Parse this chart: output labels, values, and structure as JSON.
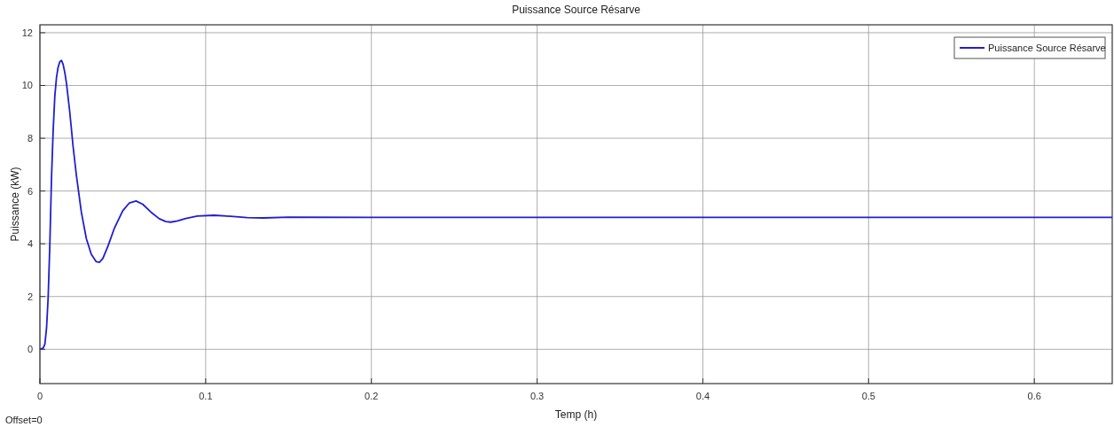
{
  "chart_data": {
    "type": "line",
    "title": "Puissance Source Résarve",
    "xlabel": "Temp (h)",
    "ylabel": "Puissance (kW)",
    "annotations": [
      "Offset=0"
    ],
    "x": [
      0,
      0.002,
      0.003,
      0.004,
      0.005,
      0.006,
      0.007,
      0.008,
      0.009,
      0.01,
      0.011,
      0.012,
      0.013,
      0.014,
      0.015,
      0.016,
      0.018,
      0.02,
      0.022,
      0.025,
      0.028,
      0.031,
      0.034,
      0.036,
      0.038,
      0.041,
      0.045,
      0.05,
      0.054,
      0.058,
      0.062,
      0.067,
      0.072,
      0.076,
      0.079,
      0.083,
      0.088,
      0.095,
      0.105,
      0.115,
      0.125,
      0.135,
      0.15,
      0.2,
      0.3,
      0.4,
      0.5,
      0.6,
      0.647
    ],
    "series": [
      {
        "name": "Puissance Source Résarve",
        "color": "#1f1fd0",
        "values": [
          0,
          0.05,
          0.2,
          0.8,
          2,
          4,
          6.5,
          8.3,
          9.6,
          10.3,
          10.7,
          10.9,
          10.95,
          10.8,
          10.5,
          10.1,
          9,
          7.7,
          6.6,
          5.2,
          4.2,
          3.6,
          3.32,
          3.3,
          3.45,
          3.9,
          4.6,
          5.25,
          5.55,
          5.62,
          5.5,
          5.2,
          4.95,
          4.84,
          4.82,
          4.87,
          4.96,
          5.05,
          5.08,
          5.04,
          4.99,
          4.98,
          5.01,
          5,
          5,
          5,
          5,
          5,
          5
        ]
      }
    ],
    "xlim": [
      0,
      0.647
    ],
    "ylim": [
      -1.3,
      12.3
    ],
    "xticks": [
      0,
      0.1,
      0.2,
      0.3,
      0.4,
      0.5,
      0.6
    ],
    "yticks": [
      0,
      2,
      4,
      6,
      8,
      10,
      12
    ],
    "grid": true,
    "legend": "top right",
    "line_style": "solid",
    "marker": "none"
  }
}
